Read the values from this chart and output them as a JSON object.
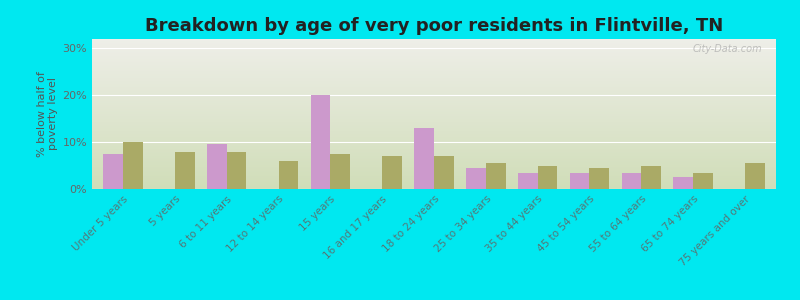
{
  "title": "Breakdown by age of very poor residents in Flintville, TN",
  "ylabel": "% below half of\npoverty level",
  "categories": [
    "Under 5 years",
    "5 years",
    "6 to 11 years",
    "12 to 14 years",
    "15 years",
    "16 and 17 years",
    "18 to 24 years",
    "25 to 34 years",
    "35 to 44 years",
    "45 to 54 years",
    "55 to 64 years",
    "65 to 74 years",
    "75 years and over"
  ],
  "flintville": [
    7.5,
    0,
    9.5,
    0,
    20.0,
    0,
    13.0,
    4.5,
    3.5,
    3.5,
    3.5,
    2.5,
    0
  ],
  "tennessee": [
    10.0,
    8.0,
    8.0,
    6.0,
    7.5,
    7.0,
    7.0,
    5.5,
    5.0,
    4.5,
    5.0,
    3.5,
    5.5
  ],
  "flintville_color": "#cc99cc",
  "tennessee_color": "#aaaa66",
  "bg_outer": "#00e8f0",
  "bg_plot_top": "#eeeee8",
  "bg_plot_bottom": "#d0ddb8",
  "ylim": [
    0,
    32
  ],
  "yticks": [
    0,
    10,
    20,
    30
  ],
  "ytick_labels": [
    "0%",
    "10%",
    "20%",
    "30%"
  ],
  "title_fontsize": 13,
  "bar_width": 0.38
}
